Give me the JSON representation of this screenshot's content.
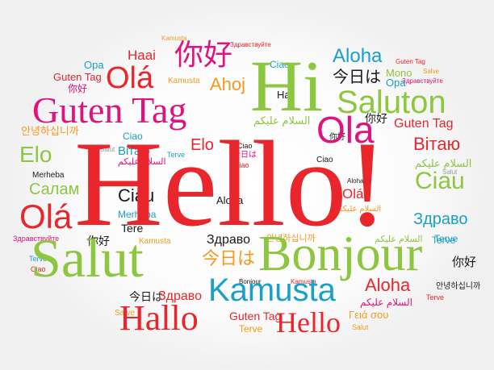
{
  "colors": {
    "red": "#e8262b",
    "magenta": "#e0127e",
    "green": "#8dc63f",
    "teal": "#1aa0c8",
    "orange": "#f39a1e",
    "gray": "#9a9a9a",
    "black": "#1a1a1a"
  },
  "words": {
    "hello_main": "Hello!",
    "hi": "Hi",
    "bonjour": "Bonjour",
    "salut_big": "Salut",
    "guten_tag_big": "Guten Tag",
    "kamusta_big": "Kamusta",
    "saluton": "Saluton",
    "ola_top": "Olá",
    "ola_right": "Ola",
    "ola_left": "Olá",
    "ola_small": "Olá",
    "hallo": "Hallo",
    "hello_small": "Hello",
    "nihao_top": "你好",
    "nihao_small1": "你好",
    "nihao_small2": "你好",
    "nihao_mid": "你好",
    "nihao_right": "你好",
    "nihao_bottom": "你好",
    "aloha_top": "Aloha",
    "aloha_mid": "Aloha",
    "aloha_small": "Aloha",
    "aloha_bottom": "Aloha",
    "konnichiwa_top": "今日は",
    "konnichiwa_mid": "今日は",
    "konnichiwa_small": "今日は",
    "konnichiwa_bottom": "今日は",
    "ahoj": "Ahoj",
    "hai": "Hai",
    "haai": "Haai",
    "opa_left": "Opa",
    "opa_right": "Opa",
    "mono": "Mono",
    "salve_top": "Salve",
    "salve_bottom": "Salve",
    "kamusta_top": "Kamusta",
    "kamusta_tl": "Kamusta",
    "kamusta_mid": "Kamusta",
    "kamusta_bot": "Kamusta",
    "zdravstvuyte_top": "Здравствуйте",
    "zdravstvuyte_right": "Здравствуйте",
    "zdravstvuyte_left": "Здравствуйте",
    "zdravstvuyte_tl": "Здравствуйте",
    "guten_tag_top": "Guten Tag",
    "guten_tag_tr": "Guten Tag",
    "guten_tag_right": "Guten Tag",
    "guten_tag_bottom": "Guten Tag",
    "ciao_top": "Ciao",
    "ciao_mid": "Ciao",
    "ciao_small": "Ciao",
    "ciao_right": "Ciao",
    "ciao_left": "Ciao",
    "ciao_c": "Ciao",
    "ciau_left": "Ciau",
    "ciau_right": "Ciau",
    "elo_left": "Elo",
    "elo_mid": "Elo",
    "vitayu_left": "Вітаю",
    "vitayu_right": "Вітаю",
    "annyeong_left": "안녕하십니까",
    "annyeong_mid": "안녕하십니까",
    "annyeong_right": "안녕하십니까",
    "salaam_top": "السلام عليكم",
    "salaam_left": "السلام عليكم",
    "salaam_right": "السلام عليكم",
    "salaam_mid": "السلام عليكم",
    "salaam_bottom": "السلام عليكم",
    "salut_small_left": "Salut",
    "salut_small_right": "Salut",
    "salut_bottom": "Salut",
    "merheba_left": "Merheba",
    "merheba_mid": "Merheba",
    "salam": "Салам",
    "tere": "Tere",
    "terve_left": "Terve",
    "terve_mid": "Terve",
    "terve_right": "Terve",
    "terve_bottom": "Terve",
    "terve_r2": "Terve",
    "zdravo_mid": "Здраво",
    "zdravo_right": "Здраво",
    "zdravo_bottom": "Здраво",
    "geia_sou": "Γειά σου",
    "bonjour_small": "Bonjour",
    "salve_right": "Salve"
  }
}
